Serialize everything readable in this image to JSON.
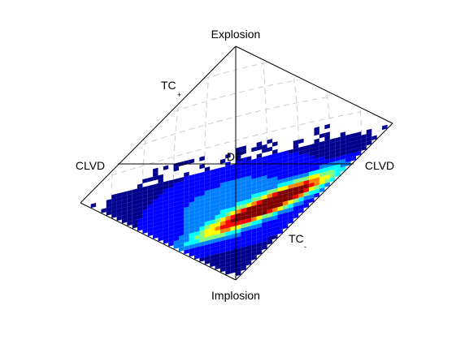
{
  "chart_data": {
    "type": "heatmap",
    "title": "",
    "projection": "source-type diamond (Hudson plot style)",
    "vertex_labels": {
      "top": "Explosion",
      "bottom": "Implosion",
      "left": "CLVD",
      "right": "CLVD",
      "center": "DC"
    },
    "edge_labels": [
      {
        "text": "TC",
        "subscript": "+"
      },
      {
        "text": "TC",
        "subscript": "-"
      }
    ],
    "colormap": [
      "#00008f",
      "#0000ff",
      "#0080ff",
      "#00ffff",
      "#80ff80",
      "#ffff00",
      "#ff8000",
      "#ff0000",
      "#800000"
    ],
    "density_peak": {
      "u": 0.22,
      "v": -0.42
    },
    "density_spread_along_axis": 0.3,
    "density_spread_across_axis": 0.055,
    "grid": "dashed gray great-circle mesh",
    "legend": "none"
  }
}
